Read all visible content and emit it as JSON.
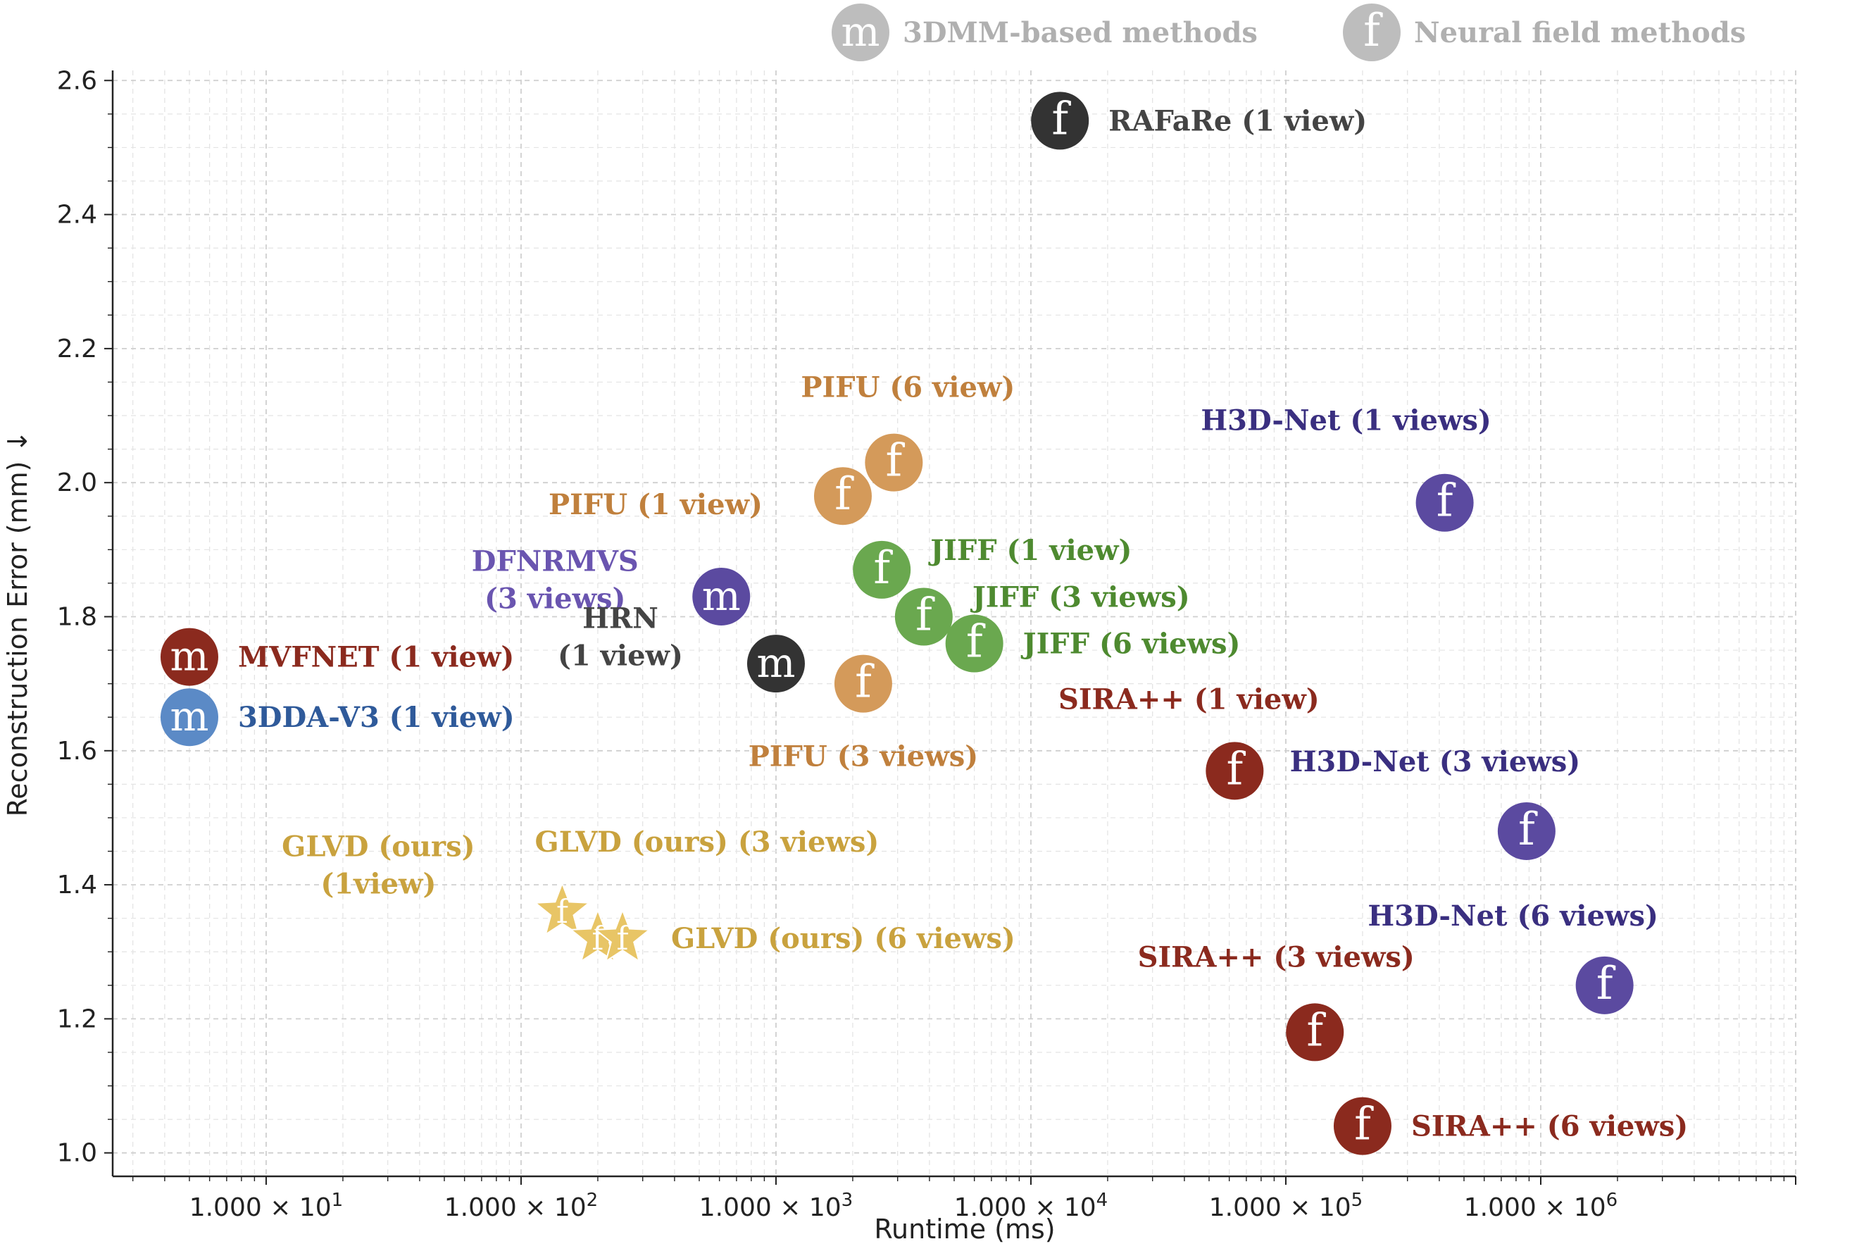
{
  "chart_data": {
    "type": "scatter",
    "title": "",
    "xlabel": "Runtime (ms)",
    "ylabel": "Reconstruction Error (mm) ↓",
    "xscale": "log",
    "xlim": [
      2.5,
      10000000
    ],
    "ylim": [
      0.965,
      2.615
    ],
    "xticks": [
      {
        "value": 10,
        "base": "1.000 × 10",
        "exp": "1"
      },
      {
        "value": 100,
        "base": "1.000 × 10",
        "exp": "2"
      },
      {
        "value": 1000,
        "base": "1.000 × 10",
        "exp": "3"
      },
      {
        "value": 10000,
        "base": "1.000 × 10",
        "exp": "4"
      },
      {
        "value": 100000,
        "base": "1.000 × 10",
        "exp": "5"
      },
      {
        "value": 1000000,
        "base": "1.000 × 10",
        "exp": "6"
      }
    ],
    "yticks": [
      1.0,
      1.2,
      1.4,
      1.6,
      1.8,
      2.0,
      2.2,
      2.4,
      2.6
    ],
    "ytick_labels": [
      "1.0",
      "1.2",
      "1.4",
      "1.6",
      "1.8",
      "2.0",
      "2.2",
      "2.4",
      "2.6"
    ],
    "grid": true,
    "legend_position": "top-right",
    "legend": [
      {
        "symbol": "m",
        "label": "3DMM-based methods",
        "color": "#bdbdbd"
      },
      {
        "symbol": "f",
        "label": "Neural field methods",
        "color": "#bdbdbd"
      }
    ],
    "points": [
      {
        "name": "RAFaRe (1 view)",
        "label_lines": [
          "RAFaRe (1 view)"
        ],
        "x": 13000,
        "y": 2.54,
        "symbol": "f",
        "shape": "circle",
        "color": "#333333",
        "label_color": "#444444",
        "label_side": "right"
      },
      {
        "name": "PIFU (6 view)",
        "label_lines": [
          "PIFU (6 view)"
        ],
        "x": 2900,
        "y": 2.03,
        "symbol": "f",
        "shape": "circle",
        "color": "#d49a5a",
        "label_color": "#c0803d",
        "label_side": "above"
      },
      {
        "name": "PIFU (1 view)",
        "label_lines": [
          "PIFU (1 view)"
        ],
        "x": 1830,
        "y": 1.98,
        "symbol": "f",
        "shape": "circle",
        "color": "#d49a5a",
        "label_color": "#c0803d",
        "label_side": "left"
      },
      {
        "name": "PIFU (3 views)",
        "label_lines": [
          "PIFU (3 views)"
        ],
        "x": 2200,
        "y": 1.7,
        "symbol": "f",
        "shape": "circle",
        "color": "#d49a5a",
        "label_color": "#c0803d",
        "label_side": "below"
      },
      {
        "name": "JIFF (1 view)",
        "label_lines": [
          "JIFF (1 view)"
        ],
        "x": 2600,
        "y": 1.87,
        "symbol": "f",
        "shape": "circle",
        "color": "#6aa84f",
        "label_color": "#4e8a30",
        "label_side": "right"
      },
      {
        "name": "JIFF (3 views)",
        "label_lines": [
          "JIFF (3 views)"
        ],
        "x": 3800,
        "y": 1.8,
        "symbol": "f",
        "shape": "circle",
        "color": "#6aa84f",
        "label_color": "#4e8a30",
        "label_side": "right"
      },
      {
        "name": "JIFF (6 views)",
        "label_lines": [
          "JIFF (6 views)"
        ],
        "x": 6000,
        "y": 1.76,
        "symbol": "f",
        "shape": "circle",
        "color": "#6aa84f",
        "label_color": "#4e8a30",
        "label_side": "right"
      },
      {
        "name": "DFNRMVS (3 views)",
        "label_lines": [
          "DFNRMVS",
          "(3 views)"
        ],
        "x": 610,
        "y": 1.83,
        "symbol": "m",
        "shape": "circle",
        "color": "#5b4aa0",
        "label_color": "#6a55b0",
        "label_side": "left"
      },
      {
        "name": "HRN (1 view)",
        "label_lines": [
          "HRN",
          "(1 view)"
        ],
        "x": 1000,
        "y": 1.73,
        "symbol": "m",
        "shape": "circle",
        "color": "#333333",
        "label_color": "#444444",
        "label_side": "left"
      },
      {
        "name": "MVFNET (1 view)",
        "label_lines": [
          "MVFNET (1 view)"
        ],
        "x": 5,
        "y": 1.74,
        "symbol": "m",
        "shape": "circle",
        "color": "#8b2a1e",
        "label_color": "#8b2a1e",
        "label_side": "right"
      },
      {
        "name": "3DDA-V3 (1 view)",
        "label_lines": [
          "3DDA-V3 (1 view)"
        ],
        "x": 5,
        "y": 1.65,
        "symbol": "m",
        "shape": "circle",
        "color": "#5b8ac6",
        "label_color": "#2f5a9a",
        "label_side": "right"
      },
      {
        "name": "H3D-Net (1 views)",
        "label_lines": [
          "H3D-Net (1 views)"
        ],
        "x": 420000,
        "y": 1.97,
        "symbol": "f",
        "shape": "circle",
        "color": "#5b4aa0",
        "label_color": "#3a2f80",
        "label_side": "above"
      },
      {
        "name": "H3D-Net (3 views)",
        "label_lines": [
          "H3D-Net (3 views)"
        ],
        "x": 880000,
        "y": 1.48,
        "symbol": "f",
        "shape": "circle",
        "color": "#5b4aa0",
        "label_color": "#3a2f80",
        "label_side": "above"
      },
      {
        "name": "H3D-Net (6 views)",
        "label_lines": [
          "H3D-Net (6 views)"
        ],
        "x": 1780000,
        "y": 1.25,
        "symbol": "f",
        "shape": "circle",
        "color": "#5b4aa0",
        "label_color": "#3a2f80",
        "label_side": "above"
      },
      {
        "name": "SIRA++ (1 view)",
        "label_lines": [
          "SIRA++ (1 view)"
        ],
        "x": 63000,
        "y": 1.57,
        "symbol": "f",
        "shape": "circle",
        "color": "#8b2a1e",
        "label_color": "#8b2a1e",
        "label_side": "above"
      },
      {
        "name": "SIRA++ (3 views)",
        "label_lines": [
          "SIRA++ (3 views)"
        ],
        "x": 130000,
        "y": 1.18,
        "symbol": "f",
        "shape": "circle",
        "color": "#8b2a1e",
        "label_color": "#8b2a1e",
        "label_side": "above"
      },
      {
        "name": "SIRA++ (6 views)",
        "label_lines": [
          "SIRA++ (6 views)"
        ],
        "x": 200000,
        "y": 1.04,
        "symbol": "f",
        "shape": "circle",
        "color": "#8b2a1e",
        "label_color": "#8b2a1e",
        "label_side": "right"
      },
      {
        "name": "GLVD (ours) (1view)",
        "label_lines": [
          "GLVD (ours)",
          "(1view)"
        ],
        "x": 145,
        "y": 1.36,
        "symbol": "f",
        "shape": "star",
        "color": "#e8c566",
        "label_color": "#c9a23e",
        "label_side": "left"
      },
      {
        "name": "GLVD (ours) (3 views)",
        "label_lines": [
          "GLVD (ours) (3 views)"
        ],
        "x": 200,
        "y": 1.32,
        "symbol": "f",
        "shape": "star",
        "color": "#e8c566",
        "label_color": "#c9a23e",
        "label_side": "above"
      },
      {
        "name": "GLVD (ours) (6 views)",
        "label_lines": [
          "GLVD (ours) (6 views)"
        ],
        "x": 250,
        "y": 1.32,
        "symbol": "f",
        "shape": "star",
        "color": "#e8c566",
        "label_color": "#c9a23e",
        "label_side": "right"
      }
    ]
  }
}
